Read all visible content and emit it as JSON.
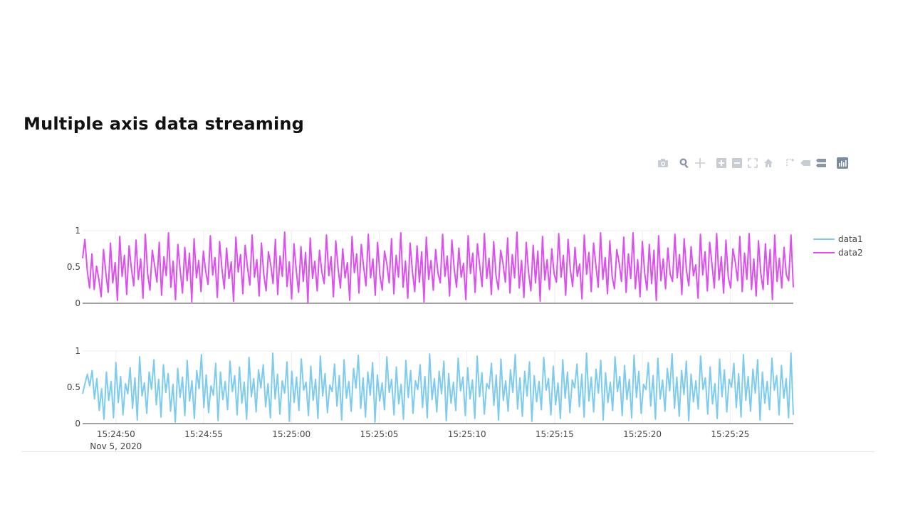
{
  "page": {
    "title": "Multiple axis data streaming"
  },
  "modebar": {
    "icons": [
      "camera-icon",
      "zoom-icon",
      "pan-icon",
      "zoom-in-icon",
      "zoom-out-icon",
      "autoscale-icon",
      "reset-axes-icon",
      "spike-lines-icon",
      "hover-closest-icon",
      "hover-compare-icon",
      "plotly-logo-icon"
    ]
  },
  "chart_data": {
    "type": "line",
    "x_ticks": [
      "15:24:50",
      "15:24:55",
      "15:25:00",
      "15:25:05",
      "15:25:10",
      "15:25:15",
      "15:25:20",
      "15:25:25"
    ],
    "x_date_label": "Nov 5, 2020",
    "x_range": [
      "15:24:48.1",
      "15:25:28.6"
    ],
    "legend_position": "right",
    "colors": {
      "data1": "#7ecbf0",
      "data2": "#dd4ff0"
    },
    "subplots": [
      {
        "series": "data2",
        "yaxis_ticks": [
          "0",
          "0.5",
          "1"
        ],
        "ylim": [
          0,
          1
        ]
      },
      {
        "series": "data1",
        "yaxis_ticks": [
          "0",
          "0.5",
          "1"
        ],
        "ylim": [
          0,
          1
        ]
      }
    ],
    "series": [
      {
        "name": "data1",
        "color": "#7ecbf0",
        "values": [
          0.41,
          0.55,
          0.68,
          0.52,
          0.73,
          0.34,
          0.62,
          0.18,
          0.48,
          0.06,
          0.71,
          0.32,
          0.58,
          0.08,
          0.84,
          0.29,
          0.65,
          0.12,
          0.55,
          0.41,
          0.77,
          0.21,
          0.63,
          0.05,
          0.92,
          0.38,
          0.56,
          0.14,
          0.71,
          0.47,
          0.88,
          0.26,
          0.61,
          0.09,
          0.81,
          0.43,
          0.69,
          0.17,
          0.54,
          0.02,
          0.76,
          0.36,
          0.64,
          0.11,
          0.87,
          0.31,
          0.59,
          0.07,
          0.73,
          0.48,
          0.95,
          0.22,
          0.67,
          0.15,
          0.52,
          0.39,
          0.83,
          0.04,
          0.71,
          0.33,
          0.58,
          0.19,
          0.86,
          0.44,
          0.66,
          0.12,
          0.78,
          0.28,
          0.57,
          0.06,
          0.91,
          0.37,
          0.62,
          0.16,
          0.74,
          0.49,
          0.81,
          0.23,
          0.55,
          0.08,
          0.97,
          0.34,
          0.68,
          0.13,
          0.59,
          0.42,
          0.85,
          0.03,
          0.72,
          0.29,
          0.64,
          0.18,
          0.89,
          0.46,
          0.57,
          0.11,
          0.79,
          0.32,
          0.61,
          0.07,
          0.93,
          0.38,
          0.69,
          0.15,
          0.53,
          0.44,
          0.82,
          0.24,
          0.66,
          0.05,
          0.88,
          0.35,
          0.58,
          0.17,
          0.76,
          0.49,
          0.94,
          0.21,
          0.63,
          0.09,
          0.71,
          0.39,
          0.84,
          0.02,
          0.67,
          0.31,
          0.56,
          0.19,
          0.92,
          0.43,
          0.61,
          0.12,
          0.78,
          0.27,
          0.54,
          0.06,
          0.87,
          0.36,
          0.73,
          0.14,
          0.59,
          0.47,
          0.81,
          0.22,
          0.65,
          0.08,
          0.96,
          0.33,
          0.62,
          0.16,
          0.72,
          0.41,
          0.86,
          0.04,
          0.69,
          0.28,
          0.57,
          0.18,
          0.9,
          0.45,
          0.64,
          0.11,
          0.77,
          0.34,
          0.6,
          0.07,
          0.93,
          0.37,
          0.7,
          0.13,
          0.55,
          0.48,
          0.83,
          0.25,
          0.67,
          0.05,
          0.89,
          0.32,
          0.59,
          0.17,
          0.74,
          0.43,
          0.95,
          0.2,
          0.63,
          0.1,
          0.72,
          0.38,
          0.85,
          0.03,
          0.66,
          0.3,
          0.58,
          0.19,
          0.91,
          0.46,
          0.62,
          0.12,
          0.79,
          0.26,
          0.56,
          0.07,
          0.88,
          0.35,
          0.71,
          0.15,
          0.6,
          0.49,
          0.82,
          0.23,
          0.68,
          0.09,
          0.97,
          0.31,
          0.64,
          0.16,
          0.75,
          0.42,
          0.87,
          0.05,
          0.7,
          0.29,
          0.57,
          0.18,
          0.92,
          0.44,
          0.65,
          0.11,
          0.8,
          0.33,
          0.61,
          0.08,
          0.94,
          0.36,
          0.72,
          0.14,
          0.54,
          0.47,
          0.84,
          0.24,
          0.66,
          0.06,
          0.9,
          0.34,
          0.6,
          0.17,
          0.76,
          0.45,
          0.96,
          0.21,
          0.64,
          0.1,
          0.73,
          0.4,
          0.86,
          0.04,
          0.68,
          0.3,
          0.59,
          0.2,
          0.93,
          0.47,
          0.63,
          0.13,
          0.78,
          0.27,
          0.55,
          0.07,
          0.89,
          0.37,
          0.74,
          0.16,
          0.61,
          0.5,
          0.83,
          0.22,
          0.69,
          0.09,
          0.95,
          0.32,
          0.65,
          0.17,
          0.75,
          0.42,
          0.88,
          0.05,
          0.71,
          0.28,
          0.58,
          0.19,
          0.9,
          0.46,
          0.66,
          0.12,
          0.8,
          0.35,
          0.62,
          0.08,
          0.97,
          0.12
        ]
      },
      {
        "name": "data2",
        "color": "#dd4ff0",
        "values": [
          0.62,
          0.88,
          0.45,
          0.21,
          0.68,
          0.19,
          0.51,
          0.33,
          0.09,
          0.74,
          0.42,
          0.15,
          0.83,
          0.28,
          0.56,
          0.04,
          0.92,
          0.37,
          0.66,
          0.12,
          0.79,
          0.48,
          0.24,
          0.87,
          0.33,
          0.61,
          0.07,
          0.95,
          0.41,
          0.18,
          0.73,
          0.52,
          0.29,
          0.84,
          0.11,
          0.64,
          0.38,
          0.97,
          0.22,
          0.58,
          0.05,
          0.81,
          0.46,
          0.14,
          0.77,
          0.31,
          0.69,
          0.02,
          0.89,
          0.35,
          0.59,
          0.16,
          0.72,
          0.44,
          0.26,
          0.93,
          0.39,
          0.63,
          0.08,
          0.85,
          0.47,
          0.2,
          0.76,
          0.34,
          0.57,
          0.03,
          0.91,
          0.43,
          0.67,
          0.13,
          0.8,
          0.49,
          0.25,
          0.94,
          0.36,
          0.6,
          0.1,
          0.83,
          0.4,
          0.17,
          0.71,
          0.53,
          0.27,
          0.88,
          0.12,
          0.65,
          0.37,
          0.98,
          0.23,
          0.57,
          0.06,
          0.82,
          0.45,
          0.15,
          0.78,
          0.3,
          0.7,
          0.01,
          0.9,
          0.34,
          0.58,
          0.17,
          0.73,
          0.43,
          0.27,
          0.94,
          0.38,
          0.64,
          0.09,
          0.86,
          0.48,
          0.21,
          0.75,
          0.35,
          0.56,
          0.04,
          0.92,
          0.42,
          0.68,
          0.14,
          0.81,
          0.5,
          0.24,
          0.95,
          0.35,
          0.61,
          0.11,
          0.84,
          0.39,
          0.18,
          0.72,
          0.54,
          0.28,
          0.89,
          0.13,
          0.66,
          0.36,
          0.97,
          0.22,
          0.58,
          0.07,
          0.83,
          0.44,
          0.16,
          0.79,
          0.29,
          0.71,
          0.02,
          0.91,
          0.33,
          0.59,
          0.18,
          0.74,
          0.42,
          0.28,
          0.95,
          0.37,
          0.65,
          0.1,
          0.87,
          0.47,
          0.22,
          0.76,
          0.36,
          0.55,
          0.05,
          0.93,
          0.41,
          0.69,
          0.15,
          0.82,
          0.51,
          0.23,
          0.96,
          0.34,
          0.62,
          0.12,
          0.85,
          0.38,
          0.19,
          0.73,
          0.55,
          0.29,
          0.9,
          0.14,
          0.67,
          0.35,
          0.98,
          0.21,
          0.59,
          0.08,
          0.84,
          0.43,
          0.17,
          0.8,
          0.28,
          0.72,
          0.03,
          0.92,
          0.32,
          0.6,
          0.19,
          0.75,
          0.41,
          0.29,
          0.96,
          0.36,
          0.66,
          0.11,
          0.88,
          0.46,
          0.23,
          0.77,
          0.37,
          0.54,
          0.06,
          0.94,
          0.4,
          0.7,
          0.16,
          0.83,
          0.52,
          0.22,
          0.97,
          0.33,
          0.63,
          0.13,
          0.86,
          0.37,
          0.2,
          0.74,
          0.56,
          0.3,
          0.91,
          0.15,
          0.68,
          0.34,
          0.97,
          0.2,
          0.6,
          0.09,
          0.85,
          0.42,
          0.18,
          0.81,
          0.27,
          0.73,
          0.04,
          0.93,
          0.31,
          0.61,
          0.2,
          0.76,
          0.4,
          0.3,
          0.95,
          0.35,
          0.67,
          0.12,
          0.89,
          0.45,
          0.24,
          0.78,
          0.38,
          0.53,
          0.07,
          0.95,
          0.39,
          0.71,
          0.17,
          0.84,
          0.53,
          0.21,
          0.96,
          0.32,
          0.64,
          0.14,
          0.87,
          0.36,
          0.21,
          0.75,
          0.57,
          0.31,
          0.92,
          0.16,
          0.69,
          0.33,
          0.96,
          0.19,
          0.61,
          0.1,
          0.86,
          0.41,
          0.19,
          0.82,
          0.26,
          0.74,
          0.05,
          0.94,
          0.3,
          0.62,
          0.21,
          0.77,
          0.39,
          0.31,
          0.94,
          0.22
        ]
      }
    ]
  }
}
